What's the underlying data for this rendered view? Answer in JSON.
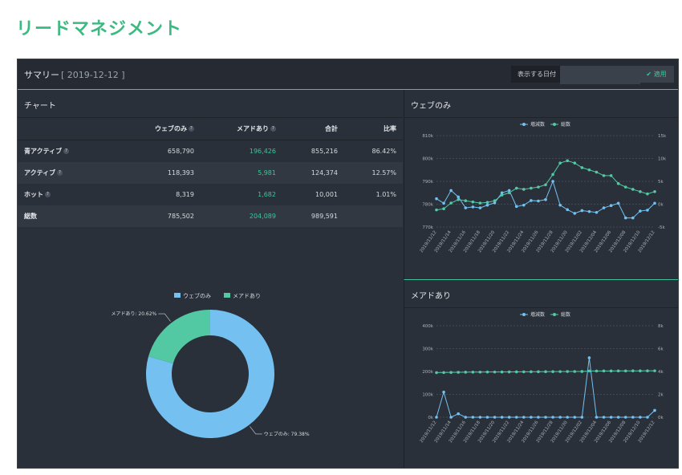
{
  "page_title": "リードマネジメント",
  "summary": {
    "label": "サマリー",
    "date": "[ 2019-12-12 ]"
  },
  "date_filter": {
    "label": "表示する日付",
    "value": "",
    "apply_label": "適用"
  },
  "chart_panel": {
    "title": "チャート"
  },
  "table": {
    "headers": [
      "",
      "ウェブのみ",
      "メアドあり",
      "合計",
      "比率"
    ],
    "rows": [
      {
        "label": "青アクティブ",
        "web": "658,790",
        "mail": "196,426",
        "total": "855,216",
        "ratio": "86.42%"
      },
      {
        "label": "アクティブ",
        "web": "118,393",
        "mail": "5,981",
        "total": "124,374",
        "ratio": "12.57%"
      },
      {
        "label": "ホット",
        "web": "8,319",
        "mail": "1,682",
        "total": "10,001",
        "ratio": "1.01%"
      },
      {
        "label": "総数",
        "web": "785,502",
        "mail": "204,089",
        "total": "989,591",
        "ratio": ""
      }
    ]
  },
  "colors": {
    "accent": "#3ec49a",
    "web": "#74c1f1",
    "mail": "#52c9a3",
    "bg": "#2a3039"
  },
  "chart_data": [
    {
      "type": "pie",
      "legend": [
        "ウェブのみ",
        "メアドあり"
      ],
      "values": [
        79.38,
        20.62
      ],
      "slice_labels": [
        "ウェブのみ: 79.38%",
        "メアドあり: 20.62%"
      ]
    },
    {
      "type": "line",
      "title": "ウェブのみ",
      "legend": [
        "増減数",
        "総数"
      ],
      "categories": [
        "2019/11/12",
        "2019/11/13",
        "2019/11/14",
        "2019/11/15",
        "2019/11/16",
        "2019/11/17",
        "2019/11/18",
        "2019/11/19",
        "2019/11/20",
        "2019/11/21",
        "2019/11/22",
        "2019/11/23",
        "2019/11/24",
        "2019/11/25",
        "2019/11/26",
        "2019/11/27",
        "2019/11/28",
        "2019/11/29",
        "2019/11/30",
        "2019/12/01",
        "2019/12/02",
        "2019/12/03",
        "2019/12/04",
        "2019/12/05",
        "2019/12/06",
        "2019/12/07",
        "2019/12/08",
        "2019/12/09",
        "2019/12/10",
        "2019/12/11",
        "2019/12/12"
      ],
      "tick_labels": [
        "2019/11/12",
        "2019/11/14",
        "2019/11/16",
        "2019/11/18",
        "2019/11/20",
        "2019/11/22",
        "2019/11/24",
        "2019/11/26",
        "2019/11/28",
        "2019/11/30",
        "2019/12/02",
        "2019/12/04",
        "2019/12/06",
        "2019/12/08",
        "2019/12/10",
        "2019/12/12"
      ],
      "left_ticks": [
        "770k",
        "780k",
        "790k",
        "800k",
        "810k"
      ],
      "right_ticks": [
        "-5k",
        "0k",
        "5k",
        "10k",
        "15k"
      ],
      "left_range": [
        770000,
        810000
      ],
      "right_range": [
        -5000,
        15000
      ],
      "series": [
        {
          "name": "増減数",
          "axis": "right",
          "values": [
            1200,
            200,
            3000,
            1600,
            -800,
            -600,
            -800,
            -200,
            300,
            2500,
            3000,
            -500,
            -200,
            800,
            700,
            1000,
            5000,
            -200,
            -1200,
            -2000,
            -1400,
            -1600,
            -1800,
            -800,
            -300,
            200,
            -3000,
            -3000,
            -1500,
            -1300,
            200
          ]
        },
        {
          "name": "総数",
          "axis": "left",
          "values": [
            777500,
            778000,
            780500,
            782000,
            781500,
            781000,
            780500,
            780800,
            781500,
            784000,
            785000,
            787000,
            786500,
            787000,
            787500,
            788500,
            793000,
            798000,
            799000,
            798000,
            796000,
            795000,
            794000,
            792500,
            792500,
            789000,
            787500,
            786500,
            785500,
            784500,
            785500
          ]
        }
      ]
    },
    {
      "type": "line",
      "title": "メアドあり",
      "legend": [
        "増減数",
        "総数"
      ],
      "categories": [
        "2019/11/12",
        "2019/11/13",
        "2019/11/14",
        "2019/11/15",
        "2019/11/16",
        "2019/11/17",
        "2019/11/18",
        "2019/11/19",
        "2019/11/20",
        "2019/11/21",
        "2019/11/22",
        "2019/11/23",
        "2019/11/24",
        "2019/11/25",
        "2019/11/26",
        "2019/11/27",
        "2019/11/28",
        "2019/11/29",
        "2019/11/30",
        "2019/12/01",
        "2019/12/02",
        "2019/12/03",
        "2019/12/04",
        "2019/12/05",
        "2019/12/06",
        "2019/12/07",
        "2019/12/08",
        "2019/12/09",
        "2019/12/10",
        "2019/12/11",
        "2019/12/12"
      ],
      "tick_labels": [
        "2019/11/12",
        "2019/11/14",
        "2019/11/16",
        "2019/11/18",
        "2019/11/20",
        "2019/11/22",
        "2019/11/24",
        "2019/11/26",
        "2019/11/28",
        "2019/11/30",
        "2019/12/02",
        "2019/12/04",
        "2019/12/06",
        "2019/12/08",
        "2019/12/10",
        "2019/12/12"
      ],
      "left_ticks": [
        "0k",
        "100k",
        "200k",
        "300k",
        "400k"
      ],
      "right_ticks": [
        "0k",
        "2k",
        "4k",
        "6k",
        "8k"
      ],
      "left_range": [
        0,
        400000
      ],
      "right_range": [
        0,
        8000
      ],
      "series": [
        {
          "name": "増減数",
          "axis": "right",
          "values": [
            0,
            2200,
            0,
            300,
            0,
            0,
            0,
            0,
            0,
            0,
            0,
            0,
            0,
            0,
            0,
            0,
            0,
            0,
            0,
            0,
            0,
            5200,
            0,
            0,
            0,
            0,
            0,
            0,
            0,
            0,
            600
          ]
        },
        {
          "name": "総数",
          "axis": "left",
          "values": [
            195000,
            195500,
            196000,
            196500,
            197000,
            197200,
            197400,
            197600,
            197800,
            198000,
            198200,
            198400,
            198600,
            198800,
            199000,
            199200,
            199400,
            199600,
            199800,
            200000,
            200200,
            202000,
            202200,
            202300,
            202400,
            202500,
            202600,
            202700,
            202800,
            202900,
            203000
          ]
        }
      ]
    }
  ]
}
